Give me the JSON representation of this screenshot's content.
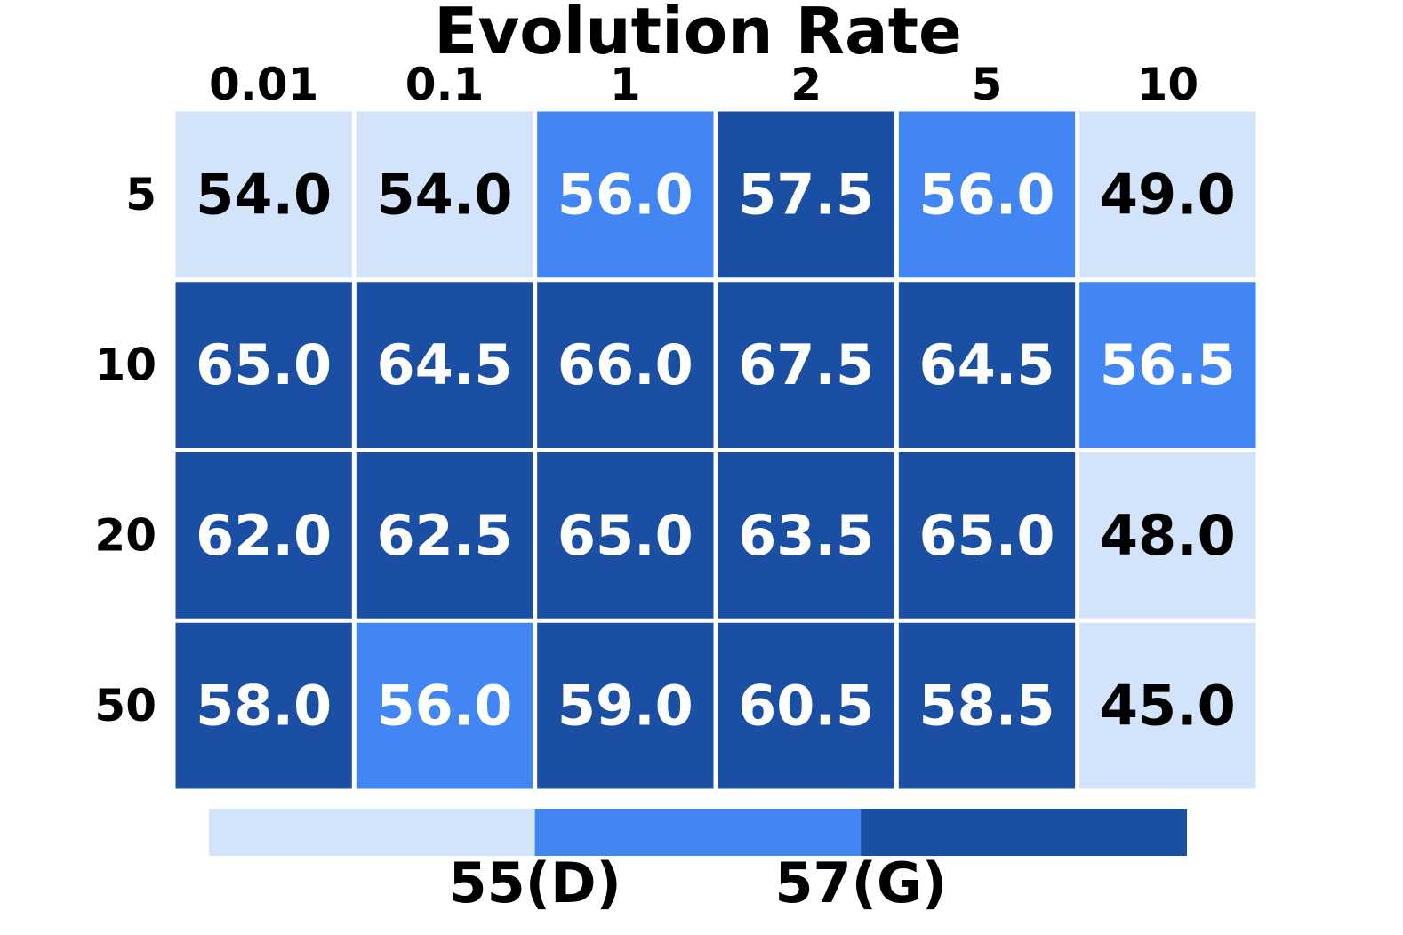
{
  "chart_data": {
    "type": "heatmap",
    "title": "Evolution Rate",
    "x_labels": [
      "0.01",
      "0.1",
      "1",
      "2",
      "5",
      "10"
    ],
    "y_labels": [
      "5",
      "10",
      "20",
      "50"
    ],
    "values": [
      [
        54.0,
        54.0,
        56.0,
        57.5,
        56.0,
        49.0
      ],
      [
        65.0,
        64.5,
        66.0,
        67.5,
        64.5,
        56.5
      ],
      [
        62.0,
        62.5,
        65.0,
        63.5,
        65.0,
        48.0
      ],
      [
        58.0,
        56.0,
        59.0,
        60.5,
        58.5,
        45.0
      ]
    ],
    "value_format_decimals": 1,
    "colorbar": {
      "boundaries": [
        55,
        57
      ],
      "labels": [
        "55(D)",
        "57(G)"
      ],
      "colors": [
        "#d3e3f9",
        "#4286f4",
        "#1a4fa3"
      ]
    },
    "text_colors": {
      "light_cell": "#000000",
      "dark_cell": "#ffffff"
    },
    "cell_gap_color": "#ffffff"
  }
}
